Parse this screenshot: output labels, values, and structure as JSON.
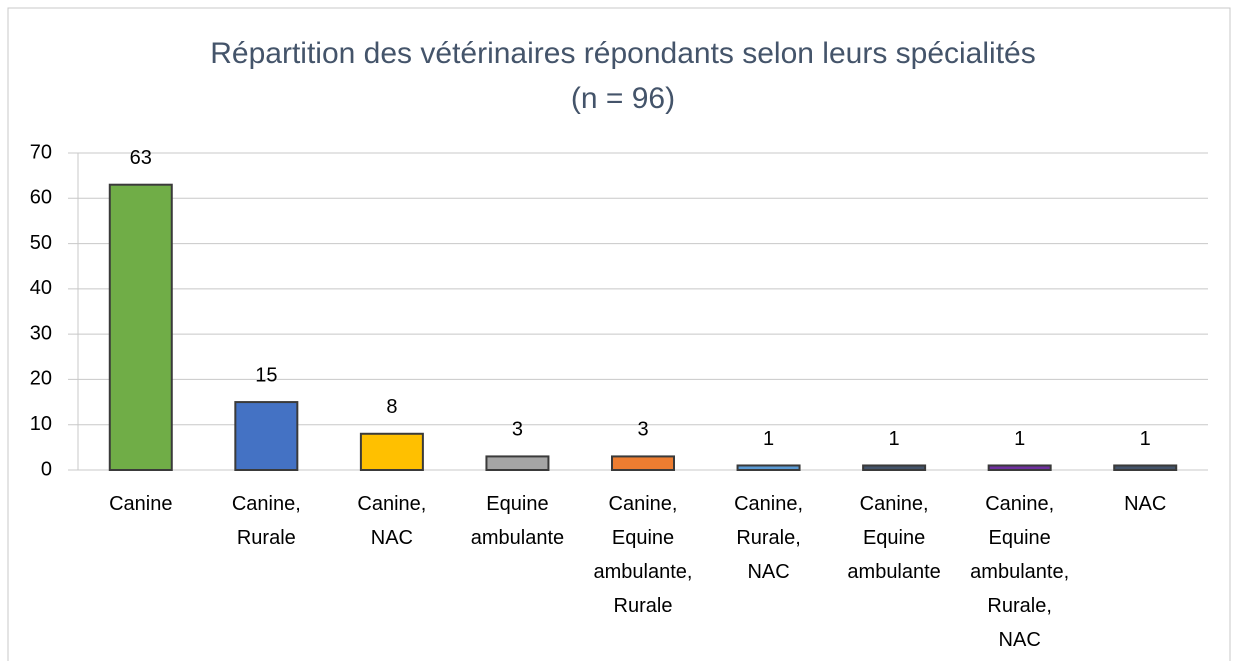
{
  "chart_data": {
    "type": "bar",
    "title": "Répartition des vétérinaires répondants selon leurs spécialités",
    "subtitle": "(n = 96)",
    "categories": [
      "Canine",
      "Canine, Rurale",
      "Canine, NAC",
      "Equine ambulante",
      "Canine, Equine ambulante, Rurale",
      "Canine, Rurale, NAC",
      "Canine, Equine ambulante",
      "Canine, Equine ambulante, Rurale, NAC",
      "NAC"
    ],
    "values": [
      63,
      15,
      8,
      3,
      3,
      1,
      1,
      1,
      1
    ],
    "colors": [
      "#70ad47",
      "#4472c4",
      "#ffc000",
      "#a5a5a5",
      "#ed7d31",
      "#5b9bd5",
      "#44546a",
      "#7030a0",
      "#44546a"
    ],
    "ylim": [
      0,
      70
    ],
    "yticks": [
      0,
      10,
      20,
      30,
      40,
      50,
      60,
      70
    ],
    "grid": true
  }
}
